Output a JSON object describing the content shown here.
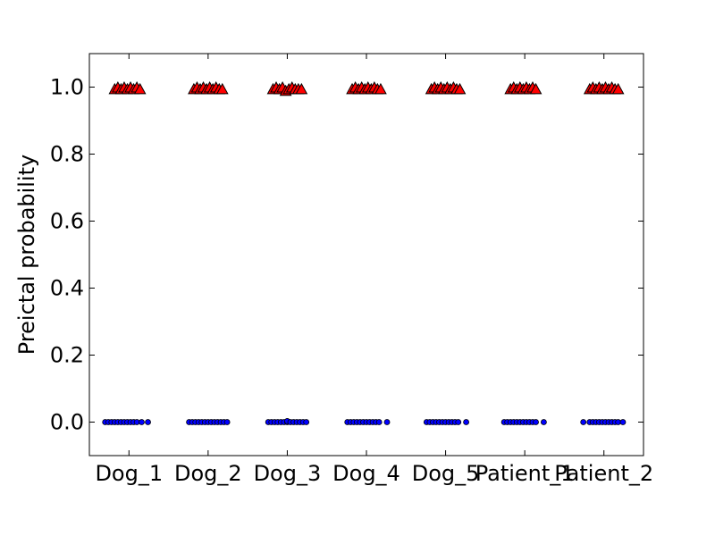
{
  "chart_data": {
    "type": "scatter",
    "ylabel": "Preictal probability",
    "xlabel": "",
    "title": "",
    "categories": [
      "Dog_1",
      "Dog_2",
      "Dog_3",
      "Dog_4",
      "Dog_5",
      "Patient_1",
      "Patient_2"
    ],
    "ylim": [
      -0.1,
      1.1
    ],
    "yticks": [
      "0.0",
      "0.2",
      "0.4",
      "0.6",
      "0.8",
      "1.0"
    ],
    "grid": false,
    "series": [
      {
        "marker": "circle",
        "color": "#0000ff",
        "points": [
          [
            0.7,
            0.0
          ],
          [
            0.74,
            0.0
          ],
          [
            0.78,
            0.0
          ],
          [
            0.82,
            0.0
          ],
          [
            0.86,
            0.0
          ],
          [
            0.9,
            0.0
          ],
          [
            0.94,
            0.0
          ],
          [
            0.98,
            0.0
          ],
          [
            1.02,
            0.0
          ],
          [
            1.06,
            0.0
          ],
          [
            1.1,
            0.0
          ],
          [
            1.16,
            0.0
          ],
          [
            1.24,
            0.0
          ],
          [
            1.76,
            0.0
          ],
          [
            1.8,
            0.0
          ],
          [
            1.84,
            0.0
          ],
          [
            1.88,
            0.0
          ],
          [
            1.92,
            0.0
          ],
          [
            1.96,
            0.0
          ],
          [
            2.0,
            0.0
          ],
          [
            2.04,
            0.0
          ],
          [
            2.08,
            0.0
          ],
          [
            2.12,
            0.0
          ],
          [
            2.16,
            0.0
          ],
          [
            2.2,
            0.0
          ],
          [
            2.24,
            0.0
          ],
          [
            2.76,
            0.0
          ],
          [
            2.8,
            0.0
          ],
          [
            2.84,
            0.0
          ],
          [
            2.88,
            0.0
          ],
          [
            2.92,
            0.0
          ],
          [
            2.96,
            0.0
          ],
          [
            3.0,
            0.0
          ],
          [
            3.0,
            0.003
          ],
          [
            3.04,
            0.0
          ],
          [
            3.08,
            0.0
          ],
          [
            3.12,
            0.0
          ],
          [
            3.16,
            0.0
          ],
          [
            3.2,
            0.0
          ],
          [
            3.24,
            0.0
          ],
          [
            3.76,
            0.0
          ],
          [
            3.8,
            0.0
          ],
          [
            3.84,
            0.0
          ],
          [
            3.88,
            0.0
          ],
          [
            3.92,
            0.0
          ],
          [
            3.96,
            0.0
          ],
          [
            4.0,
            0.0
          ],
          [
            4.04,
            0.0
          ],
          [
            4.08,
            0.0
          ],
          [
            4.12,
            0.0
          ],
          [
            4.16,
            0.0
          ],
          [
            4.26,
            0.0
          ],
          [
            4.76,
            0.0
          ],
          [
            4.8,
            0.0
          ],
          [
            4.84,
            0.0
          ],
          [
            4.88,
            0.0
          ],
          [
            4.92,
            0.0
          ],
          [
            4.96,
            0.0
          ],
          [
            5.0,
            0.0
          ],
          [
            5.04,
            0.0
          ],
          [
            5.08,
            0.0
          ],
          [
            5.12,
            0.0
          ],
          [
            5.16,
            0.0
          ],
          [
            5.26,
            0.0
          ],
          [
            5.74,
            0.0
          ],
          [
            5.78,
            0.0
          ],
          [
            5.82,
            0.0
          ],
          [
            5.86,
            0.0
          ],
          [
            5.9,
            0.0
          ],
          [
            5.94,
            0.0
          ],
          [
            5.98,
            0.0
          ],
          [
            6.02,
            0.0
          ],
          [
            6.06,
            0.0
          ],
          [
            6.1,
            0.0
          ],
          [
            6.14,
            0.0
          ],
          [
            6.24,
            0.0
          ],
          [
            6.74,
            0.0
          ],
          [
            6.82,
            0.0
          ],
          [
            6.86,
            0.0
          ],
          [
            6.9,
            0.0
          ],
          [
            6.94,
            0.0
          ],
          [
            6.98,
            0.0
          ],
          [
            7.02,
            0.0
          ],
          [
            7.06,
            0.0
          ],
          [
            7.1,
            0.0
          ],
          [
            7.14,
            0.0
          ],
          [
            7.18,
            0.0
          ],
          [
            7.24,
            0.0
          ]
        ]
      },
      {
        "marker": "triangle",
        "color": "#ff0000",
        "points": [
          [
            0.82,
            0.995
          ],
          [
            0.86,
            1.0
          ],
          [
            0.9,
            0.995
          ],
          [
            0.94,
            1.0
          ],
          [
            0.98,
            0.995
          ],
          [
            1.02,
            1.0
          ],
          [
            1.06,
            0.995
          ],
          [
            1.1,
            1.0
          ],
          [
            1.14,
            0.995
          ],
          [
            1.82,
            0.995
          ],
          [
            1.86,
            1.0
          ],
          [
            1.9,
            0.995
          ],
          [
            1.94,
            1.0
          ],
          [
            1.98,
            0.995
          ],
          [
            2.02,
            1.0
          ],
          [
            2.06,
            0.995
          ],
          [
            2.1,
            1.0
          ],
          [
            2.14,
            0.995
          ],
          [
            2.18,
            0.995
          ],
          [
            2.82,
            0.995
          ],
          [
            2.86,
            1.0
          ],
          [
            2.9,
            0.995
          ],
          [
            2.94,
            1.0
          ],
          [
            2.98,
            0.99
          ],
          [
            3.02,
            0.995
          ],
          [
            3.06,
            1.0
          ],
          [
            3.1,
            0.995
          ],
          [
            3.14,
            0.995
          ],
          [
            3.18,
            0.995
          ],
          [
            3.82,
            0.995
          ],
          [
            3.86,
            1.0
          ],
          [
            3.9,
            0.995
          ],
          [
            3.94,
            1.0
          ],
          [
            3.98,
            0.995
          ],
          [
            4.02,
            1.0
          ],
          [
            4.06,
            0.995
          ],
          [
            4.1,
            1.0
          ],
          [
            4.14,
            0.995
          ],
          [
            4.18,
            0.995
          ],
          [
            4.82,
            0.995
          ],
          [
            4.86,
            1.0
          ],
          [
            4.9,
            0.995
          ],
          [
            4.94,
            1.0
          ],
          [
            4.98,
            0.995
          ],
          [
            5.02,
            1.0
          ],
          [
            5.06,
            0.995
          ],
          [
            5.1,
            1.0
          ],
          [
            5.14,
            0.995
          ],
          [
            5.18,
            0.995
          ],
          [
            5.82,
            0.995
          ],
          [
            5.86,
            1.0
          ],
          [
            5.9,
            0.995
          ],
          [
            5.94,
            1.0
          ],
          [
            5.98,
            0.995
          ],
          [
            6.02,
            1.0
          ],
          [
            6.06,
            0.995
          ],
          [
            6.1,
            1.0
          ],
          [
            6.14,
            0.995
          ],
          [
            6.82,
            0.995
          ],
          [
            6.86,
            1.0
          ],
          [
            6.9,
            0.995
          ],
          [
            6.94,
            1.0
          ],
          [
            6.98,
            0.995
          ],
          [
            7.02,
            1.0
          ],
          [
            7.06,
            0.995
          ],
          [
            7.1,
            1.0
          ],
          [
            7.14,
            0.995
          ],
          [
            7.18,
            0.995
          ]
        ]
      }
    ]
  }
}
